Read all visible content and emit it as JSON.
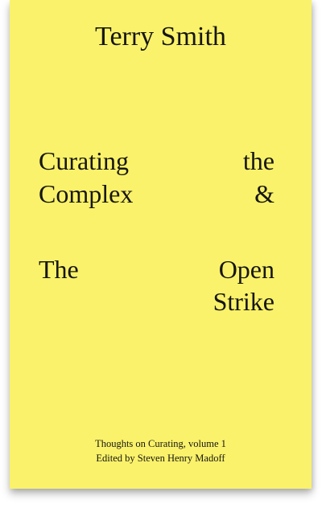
{
  "cover": {
    "background_color": "#faf26a",
    "text_color": "#161513",
    "author": "Terry Smith",
    "title_left": [
      "Curating",
      "Complex",
      "The"
    ],
    "title_right": [
      "the",
      "&",
      "Open",
      "Strike"
    ],
    "series_line": "Thoughts on Curating, volume 1",
    "editor_line": "Edited by Steven Henry Madoff"
  }
}
